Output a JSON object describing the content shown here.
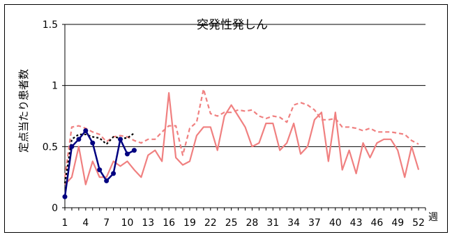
{
  "chart_data": {
    "type": "line",
    "title": "突発性発しん",
    "xlabel": "週",
    "ylabel": "定点当たり患者数",
    "xlim": [
      1,
      53
    ],
    "ylim": [
      0,
      1.5
    ],
    "y_ticks": [
      "0",
      "0.5",
      "1",
      "1.5"
    ],
    "x_ticks": [
      "1",
      "4",
      "7",
      "10",
      "13",
      "16",
      "19",
      "22",
      "25",
      "28",
      "31",
      "34",
      "37",
      "40",
      "43",
      "46",
      "49",
      "52"
    ],
    "y_tick_values": [
      0,
      0.5,
      1,
      1.5
    ],
    "x_tick_values": [
      1,
      4,
      7,
      10,
      13,
      16,
      19,
      22,
      25,
      28,
      31,
      34,
      37,
      40,
      43,
      46,
      49,
      52
    ],
    "grid": "horizontal",
    "legend": "none",
    "series": [
      {
        "color": "#f08080",
        "style": "solid",
        "x": [
          1,
          2,
          3,
          4,
          5,
          6,
          7,
          8,
          9,
          10,
          11,
          12,
          13,
          14,
          15,
          16,
          17,
          18,
          19,
          20,
          21,
          22,
          23,
          24,
          25,
          26,
          27,
          28,
          29,
          30,
          31,
          32,
          33,
          34,
          35,
          36,
          37,
          38,
          39,
          40,
          41,
          42,
          43,
          44,
          45,
          46,
          47,
          48,
          49,
          50,
          51,
          52
        ],
        "values": [
          0.19,
          0.25,
          0.5,
          0.19,
          0.38,
          0.25,
          0.25,
          0.38,
          0.34,
          0.38,
          0.31,
          0.25,
          0.43,
          0.47,
          0.38,
          0.94,
          0.41,
          0.35,
          0.38,
          0.59,
          0.66,
          0.66,
          0.47,
          0.75,
          0.84,
          0.75,
          0.66,
          0.5,
          0.53,
          0.69,
          0.69,
          0.47,
          0.53,
          0.69,
          0.44,
          0.5,
          0.72,
          0.78,
          0.38,
          0.78,
          0.31,
          0.47,
          0.28,
          0.53,
          0.41,
          0.53,
          0.56,
          0.56,
          0.47,
          0.25,
          0.5,
          0.31
        ]
      },
      {
        "color": "#f08080",
        "style": "dashed",
        "x": [
          1,
          2,
          3,
          4,
          5,
          6,
          7,
          8,
          9,
          10,
          11,
          12,
          13,
          14,
          15,
          16,
          17,
          18,
          19,
          20,
          21,
          22,
          23,
          24,
          25,
          26,
          27,
          28,
          29,
          30,
          31,
          32,
          33,
          34,
          35,
          36,
          37,
          38,
          39,
          40,
          41,
          42,
          43,
          44,
          45,
          46,
          47,
          48,
          49,
          50,
          51,
          52
        ],
        "values": [
          0.25,
          0.66,
          0.67,
          0.65,
          0.62,
          0.6,
          0.54,
          0.58,
          0.59,
          0.58,
          0.55,
          0.53,
          0.56,
          0.56,
          0.62,
          0.67,
          0.67,
          0.43,
          0.65,
          0.7,
          0.97,
          0.77,
          0.75,
          0.78,
          0.78,
          0.8,
          0.79,
          0.8,
          0.75,
          0.73,
          0.75,
          0.74,
          0.7,
          0.84,
          0.86,
          0.84,
          0.8,
          0.72,
          0.72,
          0.73,
          0.66,
          0.66,
          0.65,
          0.63,
          0.65,
          0.62,
          0.62,
          0.62,
          0.61,
          0.6,
          0.55,
          0.52
        ]
      },
      {
        "color": "#000000",
        "style": "dotted",
        "x": [
          1,
          2,
          3,
          4,
          5,
          6,
          7,
          8,
          9,
          10,
          11
        ],
        "values": [
          0.2,
          0.56,
          0.6,
          0.6,
          0.58,
          0.57,
          0.52,
          0.58,
          0.57,
          0.57,
          0.61
        ]
      },
      {
        "color": "#000080",
        "style": "solid",
        "markers": true,
        "x": [
          1,
          2,
          3,
          4,
          5,
          6,
          7,
          8,
          9,
          10,
          11
        ],
        "values": [
          0.09,
          0.5,
          0.56,
          0.63,
          0.53,
          0.31,
          0.22,
          0.28,
          0.56,
          0.44,
          0.47
        ]
      }
    ]
  }
}
